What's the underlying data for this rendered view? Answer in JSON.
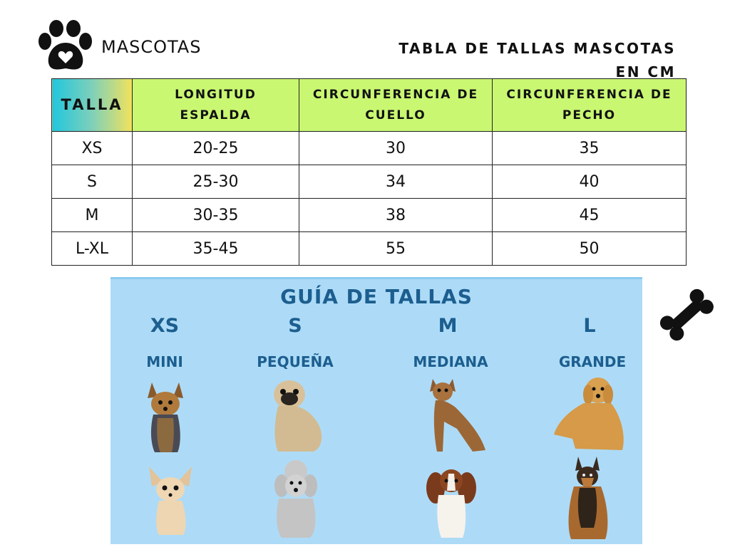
{
  "header": {
    "brand": "MASCOTAS",
    "title_line1": "TABLA DE TALLAS MASCOTAS",
    "title_line2": "EN CM"
  },
  "table": {
    "headers": [
      "TALLA",
      "LONGITUD ESPALDA",
      "CIRCUNFERENCIA DE CUELLO",
      "CIRCUNFERENCIA DE PECHO"
    ],
    "rows": [
      [
        "XS",
        "20-25",
        "30",
        "35"
      ],
      [
        "S",
        "25-30",
        "34",
        "40"
      ],
      [
        "M",
        "30-35",
        "38",
        "45"
      ],
      [
        "L-XL",
        "35-45",
        "55",
        "50"
      ]
    ]
  },
  "guide": {
    "title": "GUÍA DE TALLAS",
    "columns": [
      {
        "size": "XS",
        "category": "MINI"
      },
      {
        "size": "S",
        "category": "PEQUEÑA"
      },
      {
        "size": "M",
        "category": "MEDIANA"
      },
      {
        "size": "L",
        "category": "GRANDE"
      }
    ]
  },
  "icons": {
    "logo": "paw-heart-icon",
    "decoration": "bone-icon",
    "dogs": "dog-photo"
  },
  "colors": {
    "header_green": "#c9f772",
    "guide_bg": "#addbf7",
    "guide_text": "#1c5e8f"
  }
}
